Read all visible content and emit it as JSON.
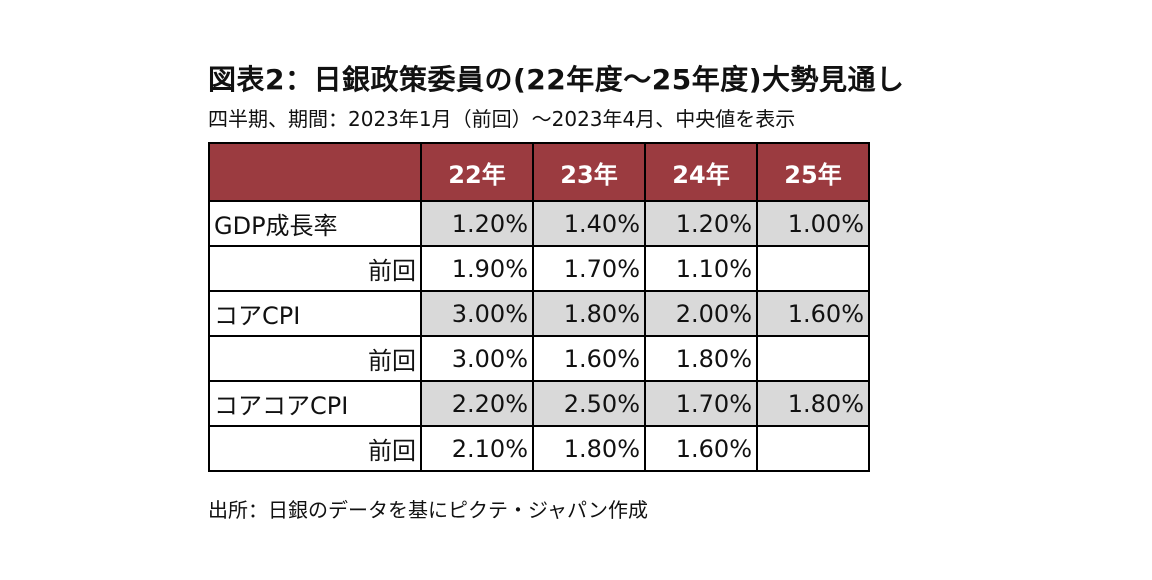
{
  "title": "図表2：日銀政策委員の(22年度～25年度)大勢見通し",
  "subtitle": "四半期、期間：2023年1月（前回）～2023年4月、中央値を表示",
  "table": {
    "header": [
      "",
      "22年",
      "23年",
      "24年",
      "25年"
    ],
    "rows": [
      {
        "label": "GDP成長率",
        "values": [
          "1.20%",
          "1.40%",
          "1.20%",
          "1.00%"
        ]
      },
      {
        "label": "前回",
        "values": [
          "1.90%",
          "1.70%",
          "1.10%",
          ""
        ]
      },
      {
        "label": "コアCPI",
        "values": [
          "3.00%",
          "1.80%",
          "2.00%",
          "1.60%"
        ]
      },
      {
        "label": "前回",
        "values": [
          "3.00%",
          "1.60%",
          "1.80%",
          ""
        ]
      },
      {
        "label": "コアコアCPI",
        "values": [
          "2.20%",
          "2.50%",
          "1.70%",
          "1.80%"
        ]
      },
      {
        "label": "前回",
        "values": [
          "2.10%",
          "1.80%",
          "1.60%",
          ""
        ]
      }
    ]
  },
  "source": "出所：日銀のデータを基にピクテ・ジャパン作成",
  "colors": {
    "header_bg": "#9b3b40",
    "header_text": "#ffffff",
    "shade": "#d9d9d9"
  }
}
